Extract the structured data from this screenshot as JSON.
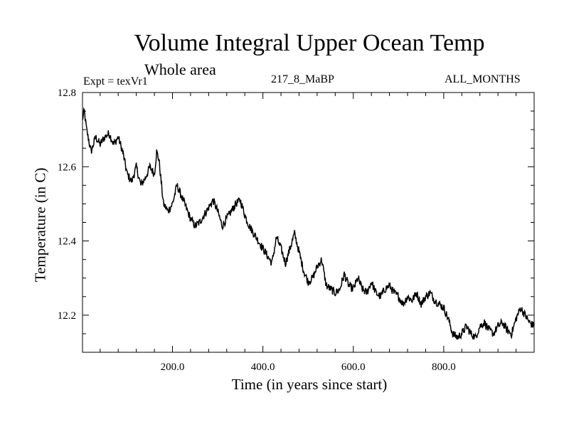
{
  "chart_data": {
    "type": "line",
    "title": "Volume Integral Upper Ocean Temp",
    "subtitle": "Whole area",
    "experiment_label": "Expt = texVr1",
    "run_label": "217_8_MaBP",
    "months_label": "ALL_MONTHS",
    "xlabel": "Time (in years since start)",
    "ylabel": "Temperature (in C)",
    "xlim": [
      1,
      1000
    ],
    "ylim": [
      12.1,
      12.8
    ],
    "x_ticks": [
      200,
      400,
      600,
      800
    ],
    "x_tick_labels": [
      "200.0",
      "400.0",
      "600.0",
      "800.0"
    ],
    "y_ticks": [
      12.2,
      12.4,
      12.6,
      12.8
    ],
    "y_tick_labels": [
      "12.2",
      "12.4",
      "12.6",
      "12.8"
    ],
    "series": [
      {
        "name": "Volume Integral Upper Ocean Temp",
        "x": [
          1,
          5,
          10,
          20,
          30,
          40,
          50,
          60,
          70,
          80,
          90,
          100,
          110,
          120,
          130,
          140,
          150,
          160,
          165,
          170,
          180,
          190,
          200,
          210,
          220,
          230,
          240,
          250,
          260,
          270,
          280,
          290,
          300,
          310,
          320,
          330,
          340,
          350,
          360,
          370,
          380,
          390,
          400,
          410,
          420,
          430,
          440,
          450,
          460,
          470,
          480,
          490,
          500,
          510,
          520,
          530,
          540,
          550,
          560,
          570,
          580,
          590,
          600,
          610,
          620,
          630,
          640,
          650,
          660,
          670,
          680,
          690,
          700,
          710,
          720,
          730,
          740,
          750,
          760,
          770,
          780,
          790,
          800,
          810,
          820,
          830,
          840,
          850,
          860,
          870,
          880,
          890,
          900,
          910,
          920,
          930,
          940,
          950,
          960,
          970,
          980,
          990,
          1000
        ],
        "y": [
          12.73,
          12.75,
          12.7,
          12.64,
          12.68,
          12.66,
          12.68,
          12.69,
          12.66,
          12.68,
          12.64,
          12.58,
          12.56,
          12.6,
          12.55,
          12.57,
          12.6,
          12.58,
          12.64,
          12.62,
          12.5,
          12.48,
          12.5,
          12.55,
          12.52,
          12.49,
          12.46,
          12.44,
          12.45,
          12.47,
          12.49,
          12.51,
          12.48,
          12.44,
          12.46,
          12.48,
          12.5,
          12.51,
          12.47,
          12.44,
          12.42,
          12.4,
          12.38,
          12.36,
          12.34,
          12.41,
          12.38,
          12.34,
          12.38,
          12.42,
          12.37,
          12.32,
          12.29,
          12.3,
          12.33,
          12.35,
          12.28,
          12.27,
          12.26,
          12.27,
          12.31,
          12.28,
          12.27,
          12.3,
          12.27,
          12.26,
          12.29,
          12.26,
          12.25,
          12.27,
          12.28,
          12.26,
          12.25,
          12.23,
          12.25,
          12.24,
          12.26,
          12.23,
          12.25,
          12.26,
          12.24,
          12.23,
          12.22,
          12.19,
          12.15,
          12.14,
          12.15,
          12.17,
          12.15,
          12.14,
          12.17,
          12.18,
          12.16,
          12.15,
          12.17,
          12.18,
          12.16,
          12.15,
          12.19,
          12.22,
          12.2,
          12.18,
          12.17
        ]
      }
    ]
  }
}
